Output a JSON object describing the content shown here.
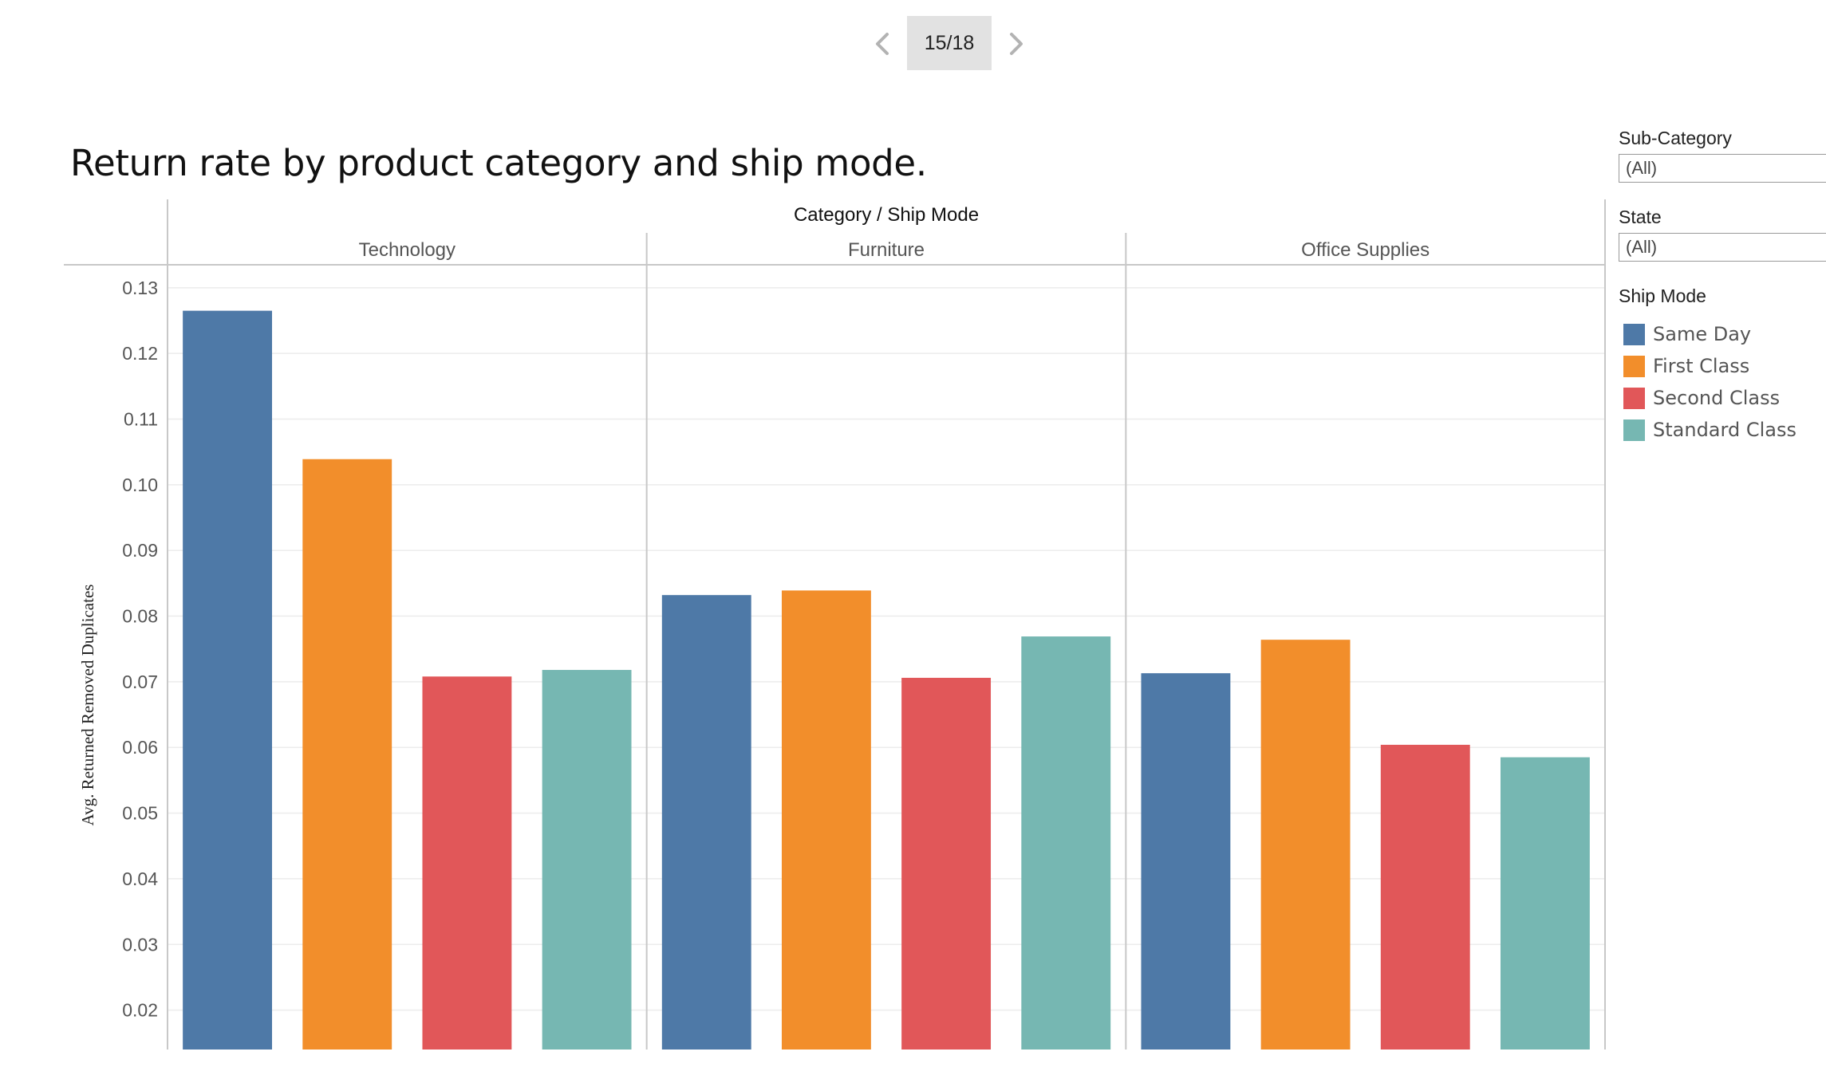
{
  "pager": {
    "current": "15/18"
  },
  "title": "Return rate by product category and ship mode.",
  "filters": [
    {
      "label": "Sub-Category",
      "value": "(All)"
    },
    {
      "label": "State",
      "value": "(All)"
    }
  ],
  "legend": {
    "title": "Ship Mode",
    "items": [
      {
        "label": "Same Day",
        "color": "#4e79a7"
      },
      {
        "label": "First Class",
        "color": "#f28e2b"
      },
      {
        "label": "Second Class",
        "color": "#e15759"
      },
      {
        "label": "Standard Class",
        "color": "#76b7b2"
      }
    ]
  },
  "chart_data": {
    "type": "bar",
    "title": "Return rate by product category and ship mode.",
    "column_title": "Category / Ship Mode",
    "ylabel": "Avg. Returned Removed Duplicates",
    "ylim": [
      0.014,
      0.1335
    ],
    "yticks": [
      "0.02",
      "0.03",
      "0.04",
      "0.05",
      "0.06",
      "0.07",
      "0.08",
      "0.09",
      "0.10",
      "0.11",
      "0.12",
      "0.13"
    ],
    "categories": [
      "Technology",
      "Furniture",
      "Office Supplies"
    ],
    "grid": true,
    "legend_position": "right",
    "series": [
      {
        "name": "Same Day",
        "color": "#4e79a7",
        "values": [
          0.1265,
          0.0832,
          0.0713
        ]
      },
      {
        "name": "First Class",
        "color": "#f28e2b",
        "values": [
          0.1039,
          0.0839,
          0.0764
        ]
      },
      {
        "name": "Second Class",
        "color": "#e15759",
        "values": [
          0.0708,
          0.0706,
          0.0604
        ]
      },
      {
        "name": "Standard Class",
        "color": "#76b7b2",
        "values": [
          0.0718,
          0.0769,
          0.0585
        ]
      }
    ]
  }
}
